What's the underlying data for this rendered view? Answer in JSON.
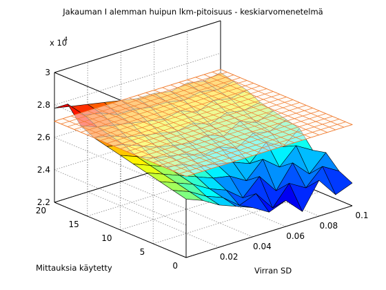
{
  "chart_data": {
    "type": "surface3d",
    "title": "Jakauman I alemman huipun lkm-pitoisuus - keskiarvomenetelmä",
    "xlabel": "Virran SD",
    "ylabel": "Mittauksia käytetty",
    "zlabel": "",
    "exponent_label": "x 10",
    "exponent_power": "4",
    "x_ticks": [
      "0.02",
      "0.04",
      "0.06",
      "0.08",
      "0.1"
    ],
    "y_ticks": [
      "0",
      "5",
      "10",
      "15",
      "20"
    ],
    "z_ticks": [
      "2.2",
      "2.4",
      "2.6",
      "2.8",
      "3"
    ],
    "xlim": [
      0,
      0.1
    ],
    "ylim": [
      0,
      20
    ],
    "zlim": [
      22000,
      30000
    ],
    "x_grid": [
      0.0,
      0.01,
      0.02,
      0.03,
      0.04,
      0.05,
      0.06,
      0.07,
      0.08,
      0.09,
      0.1
    ],
    "y_grid": [
      0,
      2,
      4,
      6,
      8,
      10,
      12,
      14,
      16,
      18,
      20
    ],
    "z_rows_by_y": [
      [
        25600,
        25200,
        24600,
        24200,
        23800,
        23200,
        23600,
        22600,
        24200,
        23000,
        23400
      ],
      [
        25800,
        25400,
        24800,
        24400,
        23600,
        24000,
        22800,
        24000,
        23400,
        24400,
        23800
      ],
      [
        26000,
        25600,
        25200,
        24600,
        24200,
        23400,
        24400,
        23200,
        24600,
        23600,
        24600
      ],
      [
        26200,
        25800,
        25400,
        25000,
        24600,
        24400,
        23800,
        24800,
        24000,
        25000,
        24400
      ],
      [
        26400,
        26000,
        25600,
        25400,
        25000,
        24800,
        24600,
        24200,
        25200,
        24600,
        25400
      ],
      [
        26600,
        26200,
        25800,
        25600,
        25400,
        25000,
        25200,
        24800,
        25400,
        25200,
        25600
      ],
      [
        26800,
        26600,
        26200,
        25800,
        25600,
        25400,
        25600,
        25200,
        25800,
        25400,
        25800
      ],
      [
        27000,
        26800,
        26400,
        26200,
        26000,
        25800,
        26000,
        25600,
        26000,
        25800,
        26000
      ],
      [
        27400,
        27000,
        26800,
        26600,
        26400,
        26200,
        26400,
        26000,
        26400,
        26200,
        26400
      ],
      [
        28400,
        27400,
        27200,
        26800,
        26800,
        26600,
        26600,
        26400,
        26600,
        26400,
        26600
      ],
      [
        27800,
        27600,
        27400,
        27200,
        27000,
        26800,
        26800,
        26600,
        26800,
        26600,
        26800
      ]
    ],
    "reference_plane_z": 27000,
    "colormap": "jet"
  }
}
